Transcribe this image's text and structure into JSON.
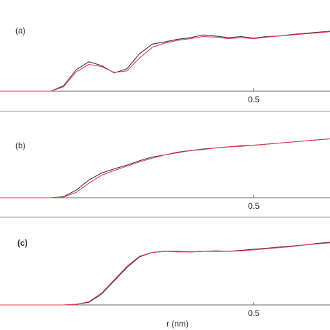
{
  "chart_data": [
    {
      "type": "line",
      "title": "(a)",
      "xlim": [
        0,
        0.65
      ],
      "xticks": [
        0.5
      ],
      "ylim": [
        0,
        1.3
      ],
      "x": [
        0,
        0.025,
        0.05,
        0.075,
        0.1,
        0.125,
        0.15,
        0.175,
        0.2,
        0.225,
        0.25,
        0.275,
        0.3,
        0.325,
        0.35,
        0.375,
        0.4,
        0.425,
        0.45,
        0.475,
        0.5,
        0.525,
        0.55,
        0.575,
        0.6,
        0.625,
        0.65
      ],
      "series": [
        {
          "color": "#333333",
          "values": [
            0,
            0,
            0,
            0,
            0,
            0.1,
            0.4,
            0.55,
            0.48,
            0.34,
            0.42,
            0.7,
            0.88,
            0.92,
            0.97,
            1.0,
            1.05,
            1.03,
            1.0,
            1.02,
            0.99,
            1.02,
            1.03,
            1.06,
            1.08,
            1.1,
            1.12
          ]
        },
        {
          "color": "#e8384f",
          "values": [
            0,
            0,
            0,
            0,
            0,
            0.08,
            0.36,
            0.5,
            0.46,
            0.35,
            0.38,
            0.62,
            0.82,
            0.9,
            0.95,
            0.98,
            1.02,
            1.01,
            0.98,
            1.0,
            0.98,
            1.01,
            1.03,
            1.05,
            1.07,
            1.09,
            1.11
          ]
        }
      ]
    },
    {
      "type": "line",
      "title": "(b)",
      "xlim": [
        0,
        0.65
      ],
      "xticks": [
        0.5
      ],
      "ylim": [
        0,
        1.3
      ],
      "x": [
        0,
        0.025,
        0.05,
        0.075,
        0.1,
        0.125,
        0.15,
        0.175,
        0.2,
        0.225,
        0.25,
        0.275,
        0.3,
        0.325,
        0.35,
        0.375,
        0.4,
        0.425,
        0.45,
        0.475,
        0.5,
        0.525,
        0.55,
        0.575,
        0.6,
        0.625,
        0.65
      ],
      "series": [
        {
          "color": "#333333",
          "values": [
            0,
            0,
            0,
            0,
            0,
            0.02,
            0.14,
            0.33,
            0.46,
            0.54,
            0.61,
            0.69,
            0.76,
            0.8,
            0.85,
            0.88,
            0.91,
            0.93,
            0.95,
            0.97,
            0.98,
            1.0,
            1.02,
            1.04,
            1.06,
            1.08,
            1.1
          ]
        },
        {
          "color": "#e8384f",
          "values": [
            0,
            0,
            0,
            0,
            0,
            0.01,
            0.1,
            0.27,
            0.42,
            0.51,
            0.59,
            0.67,
            0.74,
            0.8,
            0.84,
            0.88,
            0.9,
            0.93,
            0.95,
            0.96,
            0.98,
            1.0,
            1.02,
            1.04,
            1.06,
            1.08,
            1.1
          ]
        }
      ]
    },
    {
      "type": "line",
      "title": "(c)",
      "xlabel": "r (nm)",
      "xlim": [
        0,
        0.65
      ],
      "xticks": [
        0.5
      ],
      "ylim": [
        0,
        1.3
      ],
      "x": [
        0,
        0.025,
        0.05,
        0.075,
        0.1,
        0.125,
        0.15,
        0.175,
        0.2,
        0.225,
        0.25,
        0.275,
        0.3,
        0.325,
        0.35,
        0.375,
        0.4,
        0.425,
        0.45,
        0.475,
        0.5,
        0.525,
        0.55,
        0.575,
        0.6,
        0.625,
        0.65
      ],
      "series": [
        {
          "color": "#333333",
          "values": [
            0,
            0,
            0,
            0,
            0,
            0,
            0.01,
            0.05,
            0.2,
            0.45,
            0.7,
            0.9,
            0.98,
            1.0,
            1.0,
            0.99,
            1.0,
            1.01,
            1.0,
            1.02,
            1.04,
            1.06,
            1.08,
            1.1,
            1.12,
            1.15,
            1.17
          ]
        },
        {
          "color": "#e8384f",
          "values": [
            0,
            0,
            0,
            0,
            0,
            0,
            0.01,
            0.06,
            0.22,
            0.47,
            0.72,
            0.91,
            0.98,
            1.0,
            0.99,
            0.99,
            1.0,
            1.0,
            1.0,
            1.01,
            1.03,
            1.05,
            1.07,
            1.09,
            1.12,
            1.14,
            1.16
          ]
        }
      ]
    }
  ]
}
